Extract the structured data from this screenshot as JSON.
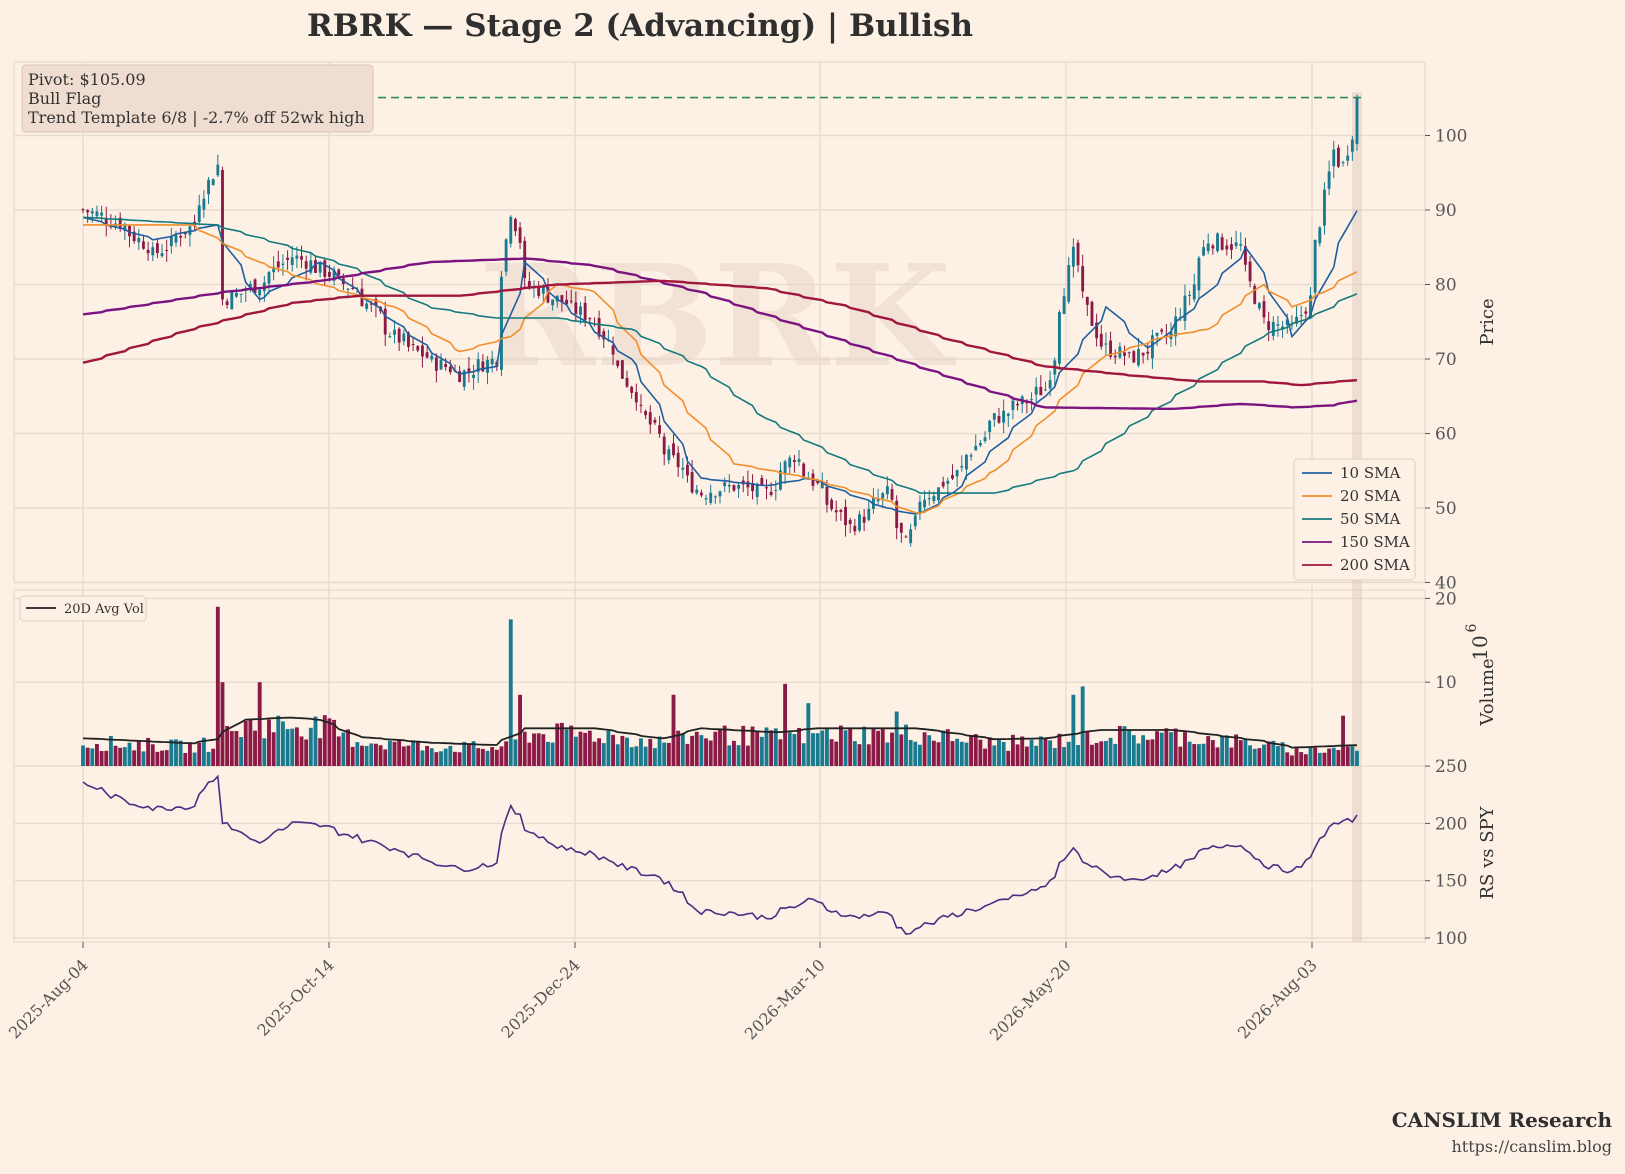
{
  "title": "RBRK  —  Stage 2 (Advancing)  |  Bullish",
  "info_box": {
    "line1": "Pivot: $105.09",
    "line2": "Bull Flag",
    "line3": "Trend Template 6/8  |  -2.7% off 52wk high"
  },
  "watermark": "RBRK",
  "footer": {
    "brand": "CANSLIM Research",
    "url": "https://canslim.blog"
  },
  "colors": {
    "background": "#fdf1e6",
    "up_candle": "#1a7a8f",
    "down_candle": "#8b1a47",
    "pivot_line": "#2e8b57",
    "sma10": "#1f5fa0",
    "sma20": "#f28e2b",
    "sma50": "#147a7d",
    "sma150": "#7b1480",
    "sma200": "#a0173d",
    "rs_line": "#4b2e83",
    "avg_vol": "#222222"
  },
  "chart_data": [
    {
      "panel": "price",
      "type": "candlestick",
      "ylabel": "Price",
      "ylim": [
        40,
        110
      ],
      "yticks": [
        "40",
        "50",
        "60",
        "70",
        "80",
        "90",
        "100"
      ],
      "xticks": [
        "2025-Aug-04",
        "2025-Oct-14",
        "2025-Dec-24",
        "2026-Mar-10",
        "2026-May-20",
        "2026-Aug-03"
      ],
      "pivot": 105.09,
      "close_anchors": [
        [
          "2025-08-04",
          90
        ],
        [
          "2025-08-15",
          88
        ],
        [
          "2025-08-25",
          84
        ],
        [
          "2025-09-05",
          88
        ],
        [
          "2025-09-12",
          96
        ],
        [
          "2025-09-15",
          78
        ],
        [
          "2025-09-25",
          80
        ],
        [
          "2025-10-05",
          84
        ],
        [
          "2025-10-14",
          82
        ],
        [
          "2025-10-25",
          79
        ],
        [
          "2025-11-05",
          73
        ],
        [
          "2025-11-15",
          70
        ],
        [
          "2025-11-25",
          68
        ],
        [
          "2025-12-05",
          70
        ],
        [
          "2025-12-10",
          90
        ],
        [
          "2025-12-15",
          80
        ],
        [
          "2025-12-24",
          78
        ],
        [
          "2026-01-05",
          75
        ],
        [
          "2026-01-15",
          66
        ],
        [
          "2026-01-25",
          58
        ],
        [
          "2026-02-05",
          52
        ],
        [
          "2026-02-15",
          53
        ],
        [
          "2026-02-25",
          52
        ],
        [
          "2026-03-05",
          57
        ],
        [
          "2026-03-12",
          53
        ],
        [
          "2026-03-22",
          47
        ],
        [
          "2026-04-02",
          52
        ],
        [
          "2026-04-08",
          45
        ],
        [
          "2026-04-12",
          51
        ],
        [
          "2026-04-22",
          54
        ],
        [
          "2026-05-05",
          62
        ],
        [
          "2026-05-20",
          66
        ],
        [
          "2026-05-28",
          84
        ],
        [
          "2026-06-05",
          72
        ],
        [
          "2026-06-15",
          70
        ],
        [
          "2026-06-28",
          74
        ],
        [
          "2026-07-08",
          86
        ],
        [
          "2026-07-18",
          85
        ],
        [
          "2026-07-24",
          75
        ],
        [
          "2026-08-03",
          74
        ],
        [
          "2026-08-08",
          79
        ],
        [
          "2026-08-14",
          98
        ],
        [
          "2026-08-18",
          96
        ],
        [
          "2026-08-22",
          105
        ]
      ],
      "series": [
        {
          "name": "10 SMA",
          "points": [
            [
              "2025-08-04",
              89
            ],
            [
              "2025-08-25",
              86
            ],
            [
              "2025-09-12",
              88
            ],
            [
              "2025-09-25",
              78
            ],
            [
              "2025-10-14",
              83
            ],
            [
              "2025-11-05",
              75
            ],
            [
              "2025-11-25",
              68
            ],
            [
              "2025-12-05",
              69
            ],
            [
              "2025-12-15",
              83
            ],
            [
              "2025-12-24",
              78
            ],
            [
              "2026-01-15",
              70
            ],
            [
              "2026-02-05",
              54
            ],
            [
              "2026-02-25",
              53
            ],
            [
              "2026-03-10",
              54
            ],
            [
              "2026-04-02",
              50
            ],
            [
              "2026-04-12",
              49
            ],
            [
              "2026-04-22",
              52
            ],
            [
              "2026-05-20",
              65
            ],
            [
              "2026-06-08",
              77
            ],
            [
              "2026-06-20",
              71
            ],
            [
              "2026-07-08",
              79
            ],
            [
              "2026-07-20",
              85
            ],
            [
              "2026-08-03",
              73
            ],
            [
              "2026-08-10",
              78
            ],
            [
              "2026-08-22",
              91
            ]
          ]
        },
        {
          "name": "20 SMA",
          "points": [
            [
              "2025-08-04",
              88
            ],
            [
              "2025-09-05",
              88
            ],
            [
              "2025-09-25",
              83
            ],
            [
              "2025-10-14",
              80
            ],
            [
              "2025-11-05",
              77
            ],
            [
              "2025-11-25",
              71
            ],
            [
              "2025-12-10",
              73
            ],
            [
              "2025-12-24",
              80
            ],
            [
              "2026-01-05",
              79
            ],
            [
              "2026-01-25",
              67
            ],
            [
              "2026-02-15",
              56
            ],
            [
              "2026-03-10",
              54
            ],
            [
              "2026-04-02",
              51
            ],
            [
              "2026-04-12",
              49
            ],
            [
              "2026-05-05",
              55
            ],
            [
              "2026-05-20",
              62
            ],
            [
              "2026-06-05",
              70
            ],
            [
              "2026-06-25",
              73
            ],
            [
              "2026-07-08",
              74
            ],
            [
              "2026-07-24",
              80
            ],
            [
              "2026-08-03",
              77
            ],
            [
              "2026-08-12",
              79
            ],
            [
              "2026-08-22",
              82
            ]
          ]
        },
        {
          "name": "50 SMA",
          "points": [
            [
              "2025-08-04",
              89
            ],
            [
              "2025-09-12",
              88
            ],
            [
              "2025-10-05",
              85
            ],
            [
              "2025-10-25",
              82
            ],
            [
              "2025-11-15",
              77
            ],
            [
              "2025-12-05",
              75.5
            ],
            [
              "2025-12-24",
              75.5
            ],
            [
              "2026-01-15",
              74
            ],
            [
              "2026-02-05",
              69
            ],
            [
              "2026-02-25",
              62
            ],
            [
              "2026-03-22",
              56
            ],
            [
              "2026-04-12",
              52
            ],
            [
              "2026-05-05",
              52
            ],
            [
              "2026-05-28",
              55
            ],
            [
              "2026-06-15",
              61
            ],
            [
              "2026-07-05",
              67
            ],
            [
              "2026-07-24",
              73
            ],
            [
              "2026-08-10",
              76
            ],
            [
              "2026-08-22",
              79
            ]
          ]
        },
        {
          "name": "150 SMA",
          "points": [
            [
              "2025-08-04",
              76
            ],
            [
              "2025-09-15",
              79
            ],
            [
              "2025-10-14",
              80.5
            ],
            [
              "2025-11-15",
              83
            ],
            [
              "2025-12-15",
              83.5
            ],
            [
              "2026-01-05",
              82.5
            ],
            [
              "2026-02-05",
              79
            ],
            [
              "2026-03-10",
              74
            ],
            [
              "2026-04-12",
              69
            ],
            [
              "2026-05-05",
              65.5
            ],
            [
              "2026-05-20",
              63.5
            ],
            [
              "2026-06-28",
              63.3
            ],
            [
              "2026-07-18",
              64
            ],
            [
              "2026-08-03",
              63.5
            ],
            [
              "2026-08-15",
              63.8
            ],
            [
              "2026-08-22",
              64.5
            ]
          ]
        },
        {
          "name": "200 SMA",
          "points": [
            [
              "2025-08-04",
              69.5
            ],
            [
              "2025-09-05",
              74
            ],
            [
              "2025-10-05",
              77.5
            ],
            [
              "2025-10-25",
              78.5
            ],
            [
              "2025-11-25",
              78.5
            ],
            [
              "2025-12-24",
              80
            ],
            [
              "2026-01-25",
              80.5
            ],
            [
              "2026-02-25",
              79.5
            ],
            [
              "2026-03-22",
              77
            ],
            [
              "2026-04-22",
              72.5
            ],
            [
              "2026-05-20",
              69
            ],
            [
              "2026-06-15",
              67.8
            ],
            [
              "2026-07-05",
              67
            ],
            [
              "2026-07-24",
              67
            ],
            [
              "2026-08-05",
              66.5
            ],
            [
              "2026-08-22",
              67.2
            ]
          ]
        }
      ],
      "legend": "lower-right"
    },
    {
      "panel": "volume",
      "type": "bar",
      "ylabel": "Volume",
      "yunit_exponent": "6",
      "ylim": [
        0,
        20
      ],
      "yticks": [
        "10",
        "20"
      ],
      "legend": "upper-left",
      "spikes": [
        [
          "2025-09-12",
          19
        ],
        [
          "2025-09-15",
          10
        ],
        [
          "2025-09-25",
          10
        ],
        [
          "2025-10-25",
          8.5
        ],
        [
          "2025-12-10",
          17.5
        ],
        [
          "2025-12-12",
          8.5
        ],
        [
          "2025-12-20",
          11.5
        ],
        [
          "2026-01-25",
          10.5
        ],
        [
          "2026-01-28",
          8.5
        ],
        [
          "2026-03-01",
          9.8
        ],
        [
          "2026-03-03",
          9.8
        ],
        [
          "2026-03-08",
          9.8
        ],
        [
          "2026-03-10",
          7.5
        ],
        [
          "2026-04-06",
          6.5
        ],
        [
          "2026-05-28",
          8.5
        ],
        [
          "2026-06-01",
          9.5
        ],
        [
          "2026-08-18",
          6
        ]
      ],
      "avg_series": {
        "name": "20D Avg Vol",
        "points": [
          [
            "2025-08-04",
            3.3
          ],
          [
            "2025-09-05",
            2.7
          ],
          [
            "2025-09-12",
            3.2
          ],
          [
            "2025-09-20",
            5.5
          ],
          [
            "2025-10-05",
            5.8
          ],
          [
            "2025-10-14",
            5.5
          ],
          [
            "2025-10-25",
            3.5
          ],
          [
            "2025-11-15",
            2.8
          ],
          [
            "2025-12-05",
            2.5
          ],
          [
            "2025-12-15",
            4.5
          ],
          [
            "2026-01-05",
            4.5
          ],
          [
            "2026-01-25",
            3.2
          ],
          [
            "2026-02-05",
            4.5
          ],
          [
            "2026-03-01",
            4
          ],
          [
            "2026-03-12",
            4.5
          ],
          [
            "2026-04-12",
            4.5
          ],
          [
            "2026-05-05",
            3.2
          ],
          [
            "2026-05-20",
            3.3
          ],
          [
            "2026-06-05",
            4.3
          ],
          [
            "2026-06-28",
            4.3
          ],
          [
            "2026-07-24",
            3
          ],
          [
            "2026-08-03",
            2.2
          ],
          [
            "2026-08-22",
            2.5
          ]
        ]
      }
    },
    {
      "panel": "rs",
      "type": "line",
      "ylabel": "RS vs SPY",
      "ylim": [
        100,
        250
      ],
      "yticks": [
        "100",
        "150",
        "200",
        "250"
      ],
      "series": [
        {
          "name": "RS vs SPY",
          "points": [
            [
              "2025-08-04",
              235
            ],
            [
              "2025-08-15",
              220
            ],
            [
              "2025-08-25",
              213
            ],
            [
              "2025-09-05",
              215
            ],
            [
              "2025-09-12",
              243
            ],
            [
              "2025-09-15",
              200
            ],
            [
              "2025-09-25",
              183
            ],
            [
              "2025-10-05",
              200
            ],
            [
              "2025-10-14",
              198
            ],
            [
              "2025-10-25",
              187
            ],
            [
              "2025-11-05",
              178
            ],
            [
              "2025-11-15",
              168
            ],
            [
              "2025-11-25",
              160
            ],
            [
              "2025-12-05",
              165
            ],
            [
              "2025-12-10",
              213
            ],
            [
              "2025-12-15",
              195
            ],
            [
              "2025-12-24",
              180
            ],
            [
              "2026-01-05",
              172
            ],
            [
              "2026-01-15",
              160
            ],
            [
              "2026-01-25",
              152
            ],
            [
              "2026-02-05",
              123
            ],
            [
              "2026-02-15",
              122
            ],
            [
              "2026-02-25",
              118
            ],
            [
              "2026-03-10",
              133
            ],
            [
              "2026-03-22",
              118
            ],
            [
              "2026-04-02",
              122
            ],
            [
              "2026-04-08",
              105
            ],
            [
              "2026-04-22",
              120
            ],
            [
              "2026-05-05",
              130
            ],
            [
              "2026-05-20",
              145
            ],
            [
              "2026-05-28",
              177
            ],
            [
              "2026-06-05",
              158
            ],
            [
              "2026-06-15",
              150
            ],
            [
              "2026-06-28",
              160
            ],
            [
              "2026-07-08",
              178
            ],
            [
              "2026-07-18",
              183
            ],
            [
              "2026-07-24",
              165
            ],
            [
              "2026-08-03",
              157
            ],
            [
              "2026-08-08",
              172
            ],
            [
              "2026-08-14",
              200
            ],
            [
              "2026-08-18",
              200
            ],
            [
              "2026-08-22",
              207
            ]
          ]
        }
      ]
    }
  ]
}
